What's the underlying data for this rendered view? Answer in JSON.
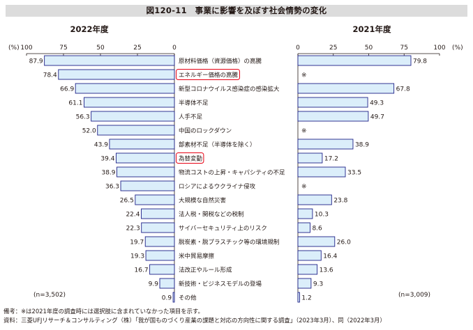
{
  "title": "図120-11　事業に影響を及ぼす社会情勢の変化",
  "chart_data": {
    "type": "bar",
    "unit_label": "(%)",
    "xlim": [
      0,
      100
    ],
    "ticks": [
      0,
      25,
      50,
      75,
      100
    ],
    "categories": [
      "原材料価格（資源価格）の高騰",
      "エネルギー価格の高騰",
      "新型コロナウイルス感染症の感染拡大",
      "半導体不足",
      "人手不足",
      "中国のロックダウン",
      "部素材不足（半導体を除く）",
      "為替変動",
      "物流コストの上昇・キャパシティの不足",
      "ロシアによるウクライナ侵攻",
      "大規模な自然災害",
      "法人税・関税などの税制",
      "サイバーセキュリティ上のリスク",
      "脱炭素・脱プラスチック等の環境規制",
      "米中貿易摩擦",
      "法改正やルール形成",
      "新技術・ビジネスモデルの登場",
      "その他"
    ],
    "highlighted": [
      "エネルギー価格の高騰",
      "為替変動"
    ],
    "not_surveyed_marker": "※",
    "series": [
      {
        "name": "2022年度",
        "n_label": "(n=3,502)",
        "values": [
          87.9,
          78.4,
          66.9,
          61.1,
          56.3,
          52.0,
          43.9,
          39.4,
          38.9,
          36.3,
          26.5,
          22.4,
          22.3,
          19.7,
          19.3,
          16.7,
          9.9,
          0.9
        ],
        "value_labels": [
          "87.9",
          "78.4",
          "66.9",
          "61.1",
          "56.3",
          "52.0",
          "43.9",
          "39.4",
          "38.9",
          "36.3",
          "26.5",
          "22.4",
          "22.3",
          "19.7",
          "19.3",
          "16.7",
          "9.9",
          "0.9"
        ]
      },
      {
        "name": "2021年度",
        "n_label": "(n=3,009)",
        "values": [
          79.8,
          null,
          67.8,
          49.3,
          49.7,
          null,
          38.9,
          17.2,
          33.5,
          null,
          23.8,
          10.3,
          8.6,
          26.0,
          16.4,
          13.6,
          9.3,
          1.2
        ],
        "value_labels": [
          "79.8",
          null,
          "67.8",
          "49.3",
          "49.7",
          null,
          "38.9",
          "17.2",
          "33.5",
          null,
          "23.8",
          "10.3",
          "8.6",
          "26.0",
          "16.4",
          "13.6",
          "9.3",
          "1.2"
        ]
      }
    ]
  },
  "notes": [
    "備考：※は2021年度の調査時には選択肢に含まれていなかった項目を示す。",
    "資料：三菱UFJリサーチ＆コンサルティング（株）「我が国ものづくり産業の課題と対応の方向性に関する調査」（2023年3月）、同（2022年3月）"
  ],
  "colors": {
    "bar_fill": "#dbeefa",
    "bar_stroke": "#1d2088",
    "highlight_box": "#e60012",
    "axis": "#231815"
  }
}
